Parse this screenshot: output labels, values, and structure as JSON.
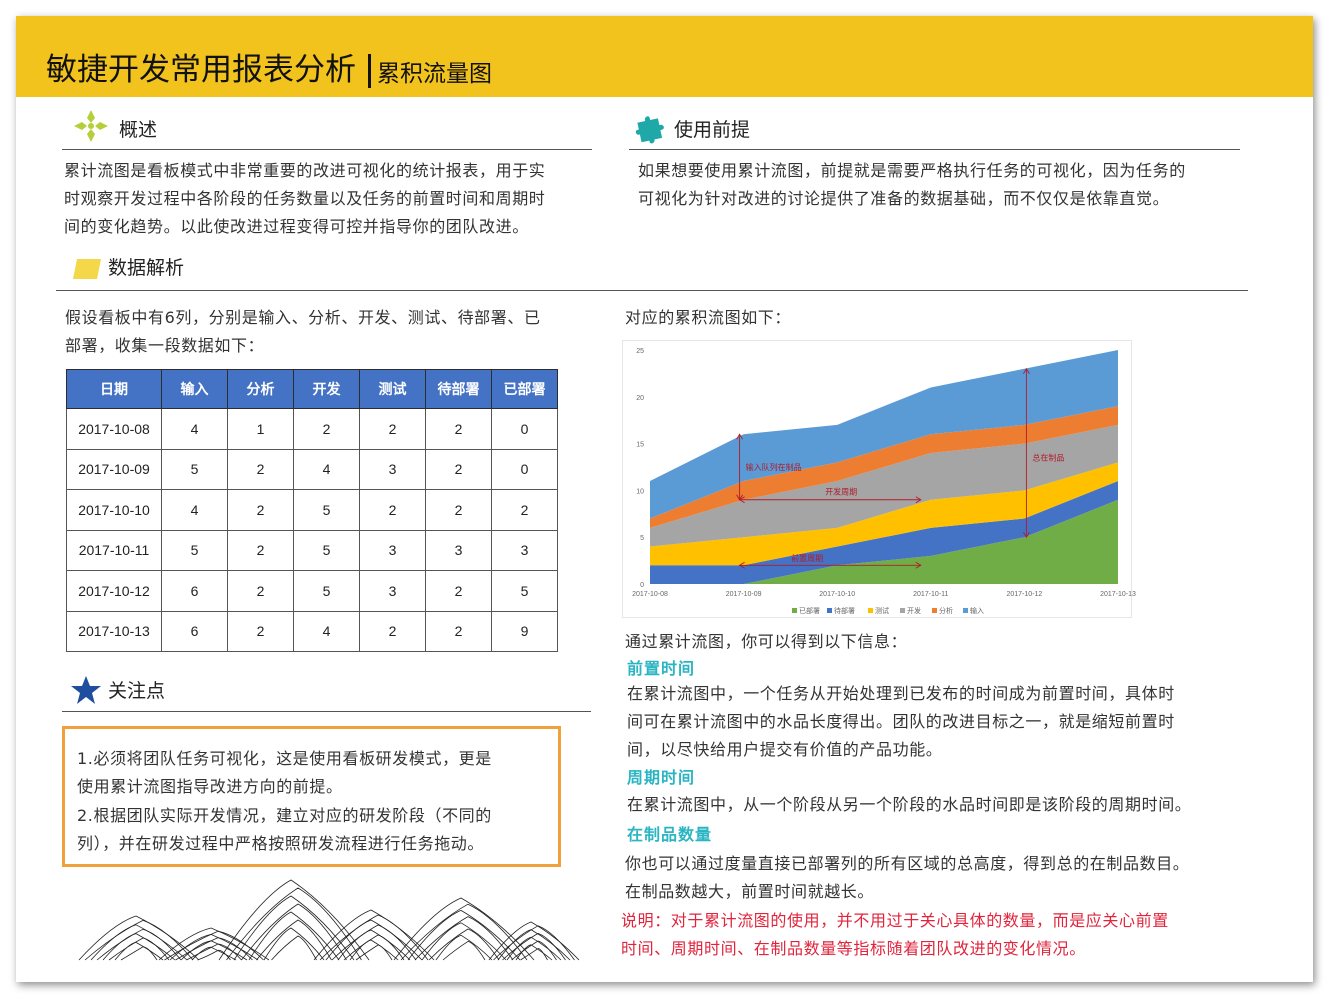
{
  "header": {
    "title": "敏捷开发常用报表分析",
    "subtitle": "累积流量图"
  },
  "overview": {
    "title": "概述",
    "lines": [
      "累计流图是看板模式中非常重要的改进可视化的统计报表，用于实",
      "时观察开发过程中各阶段的任务数量以及任务的前置时间和周期时",
      "间的变化趋势。以此使改进过程变得可控并指导你的团队改进。"
    ]
  },
  "premise": {
    "title": "使用前提",
    "lines": [
      "如果想要使用累计流图，前提就是需要严格执行任务的可视化，因为任务的",
      "可视化为针对改进的讨论提供了准备的数据基础，而不仅仅是依靠直觉。"
    ]
  },
  "analysis": {
    "title": "数据解析",
    "intro_lines": [
      "假设看板中有6列，分别是输入、分析、开发、测试、待部署、已",
      "部署，收集一段数据如下："
    ],
    "chart_intro": "对应的累积流图如下："
  },
  "table": {
    "headers": [
      "日期",
      "输入",
      "分析",
      "开发",
      "测试",
      "待部署",
      "已部署"
    ],
    "rows": [
      [
        "2017-10-08",
        "4",
        "1",
        "2",
        "2",
        "2",
        "0"
      ],
      [
        "2017-10-09",
        "5",
        "2",
        "4",
        "3",
        "2",
        "0"
      ],
      [
        "2017-10-10",
        "4",
        "2",
        "5",
        "2",
        "2",
        "2"
      ],
      [
        "2017-10-11",
        "5",
        "2",
        "5",
        "3",
        "3",
        "3"
      ],
      [
        "2017-10-12",
        "6",
        "2",
        "5",
        "3",
        "2",
        "5"
      ],
      [
        "2017-10-13",
        "6",
        "2",
        "4",
        "2",
        "2",
        "9"
      ]
    ]
  },
  "chart_data": {
    "type": "area",
    "stacked": true,
    "x": [
      "2017-10-08",
      "2017-10-09",
      "2017-10-10",
      "2017-10-11",
      "2017-10-12",
      "2017-10-13"
    ],
    "series": [
      {
        "name": "已部署",
        "values": [
          0,
          0,
          2,
          3,
          5,
          9
        ],
        "color": "#70ad47"
      },
      {
        "name": "待部署",
        "values": [
          2,
          2,
          2,
          3,
          2,
          2
        ],
        "color": "#4472c4"
      },
      {
        "name": "测试",
        "values": [
          2,
          3,
          2,
          3,
          3,
          2
        ],
        "color": "#ffc000"
      },
      {
        "name": "开发",
        "values": [
          2,
          4,
          5,
          5,
          5,
          4
        ],
        "color": "#a5a5a5"
      },
      {
        "name": "分析",
        "values": [
          1,
          2,
          2,
          2,
          2,
          2
        ],
        "color": "#ed7d31"
      },
      {
        "name": "输入",
        "values": [
          4,
          5,
          4,
          5,
          6,
          6
        ],
        "color": "#5b9bd5"
      }
    ],
    "yticks": [
      "0",
      "5",
      "10",
      "15",
      "20",
      "25"
    ],
    "ylim": [
      0,
      25
    ],
    "legend": "bottom",
    "annotations": {
      "input_queue": "输入队列在制品",
      "cycle_time": "开发周期",
      "lead_time": "前置周期",
      "wip_total": "总在制品"
    }
  },
  "info": {
    "intro": "通过累计流图，你可以得到以下信息：",
    "lead_time": {
      "title": "前置时间",
      "lines": [
        "在累计流图中，一个任务从开始处理到已发布的时间成为前置时间，具体时",
        "间可在累计流图中的水品长度得出。团队的改进目标之一，就是缩短前置时",
        "间，以尽快给用户提交有价值的产品功能。"
      ]
    },
    "cycle_time": {
      "title": "周期时间",
      "lines": [
        "在累计流图中，从一个阶段从另一个阶段的水品时间即是该阶段的周期时间。"
      ]
    },
    "wip": {
      "title": "在制品数量",
      "lines": [
        "你也可以通过度量直接已部署列的所有区域的总高度，得到总的在制品数目。",
        "在制品数越大，前置时间就越长。"
      ]
    },
    "note_lines": [
      "说明：对于累计流图的使用，并不用过于关心具体的数量，而是应关心前置",
      "时间、周期时间、在制品数量等指标随着团队改进的变化情况。"
    ]
  },
  "focus": {
    "title": "关注点",
    "lines": [
      "1.必须将团队任务可视化，这是使用看板研发模式，更是",
      "使用累计流图指导改进方向的前提。",
      "2.根据团队实际开发情况，建立对应的研发阶段（不同的",
      "列），并在研发过程中严格按照研发流程进行任务拖动。"
    ]
  },
  "colors": {
    "header": "#f2c21d",
    "table_header": "#4472c4",
    "note_border": "#f0a13b",
    "subhead": "#2bb5c2",
    "note_text": "#e0243c"
  }
}
